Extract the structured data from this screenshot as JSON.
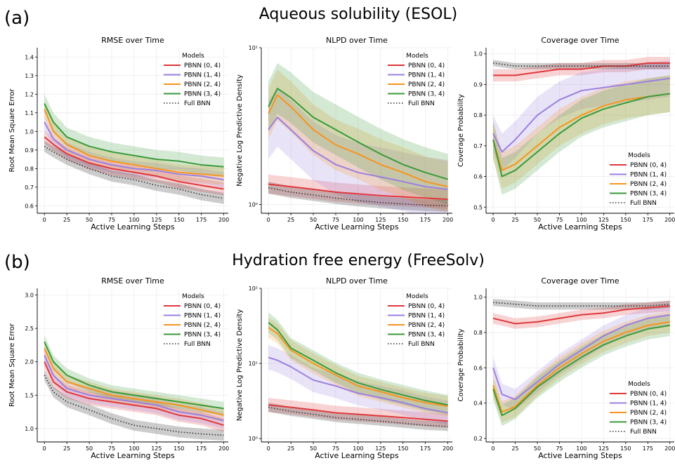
{
  "sections": [
    {
      "label": "(a)",
      "title": "Aqueous solubility (ESOL)"
    },
    {
      "label": "(b)",
      "title": "Hydration free energy (FreeSolv)"
    }
  ],
  "legend_title": "Models",
  "legend_entries": [
    "PBNN (0, 4)",
    "PBNN (1, 4)",
    "PBNN (2, 4)",
    "PBNN (3, 4)",
    "Full BNN"
  ],
  "colors": {
    "PBNN (0, 4)": "#e0383b",
    "PBNN (1, 4)": "#9b7fe0",
    "PBNN (2, 4)": "#f7941d",
    "PBNN (3, 4)": "#3a9a3a",
    "Full BNN": "#333333"
  },
  "chart_data": [
    {
      "type": "line",
      "section": "(a)",
      "title": "RMSE over Time",
      "xlabel": "Active Learning Steps",
      "ylabel": "Root Mean Square Error",
      "xlim": [
        -8,
        205
      ],
      "ylim": [
        0.56,
        1.45
      ],
      "yscale": "linear",
      "xticks": [
        0,
        25,
        50,
        75,
        100,
        125,
        150,
        175,
        200
      ],
      "yticks": [
        0.6,
        0.7,
        0.8,
        0.9,
        1.0,
        1.1,
        1.2,
        1.3,
        1.4
      ],
      "ytick_labels": [
        "0.6",
        "0.7",
        "0.8",
        "0.9",
        "1.0",
        "1.1",
        "1.2",
        "1.3",
        "1.4"
      ],
      "legend": "top-right",
      "grid": true,
      "series": [
        {
          "name": "PBNN (0, 4)",
          "style": "solid",
          "x": [
            0,
            10,
            25,
            50,
            75,
            100,
            125,
            150,
            175,
            200
          ],
          "y": [
            0.97,
            0.93,
            0.88,
            0.83,
            0.8,
            0.78,
            0.76,
            0.73,
            0.71,
            0.69
          ],
          "spread": 0.035
        },
        {
          "name": "PBNN (1, 4)",
          "style": "solid",
          "x": [
            0,
            10,
            25,
            50,
            75,
            100,
            125,
            150,
            175,
            200
          ],
          "y": [
            1.05,
            0.96,
            0.9,
            0.85,
            0.82,
            0.8,
            0.79,
            0.77,
            0.76,
            0.74
          ],
          "spread": 0.04
        },
        {
          "name": "PBNN (2, 4)",
          "style": "solid",
          "x": [
            0,
            10,
            25,
            50,
            75,
            100,
            125,
            150,
            175,
            200
          ],
          "y": [
            1.12,
            1.0,
            0.93,
            0.87,
            0.84,
            0.82,
            0.8,
            0.78,
            0.77,
            0.76
          ],
          "spread": 0.045
        },
        {
          "name": "PBNN (3, 4)",
          "style": "solid",
          "x": [
            0,
            10,
            25,
            50,
            75,
            100,
            125,
            150,
            175,
            200
          ],
          "y": [
            1.15,
            1.05,
            0.97,
            0.92,
            0.89,
            0.87,
            0.85,
            0.84,
            0.82,
            0.81
          ],
          "spread": 0.05
        },
        {
          "name": "Full BNN",
          "style": "dotted",
          "x": [
            0,
            10,
            25,
            50,
            75,
            100,
            125,
            150,
            175,
            200
          ],
          "y": [
            0.92,
            0.89,
            0.85,
            0.8,
            0.76,
            0.74,
            0.71,
            0.69,
            0.66,
            0.64
          ],
          "spread": 0.03
        }
      ]
    },
    {
      "type": "line",
      "section": "(a)",
      "title": "NLPD over Time",
      "xlabel": "Active Learning Steps",
      "ylabel": "Negative Log Predictive Density",
      "xlim": [
        -8,
        205
      ],
      "ylim": [
        0.88,
        10
      ],
      "yscale": "log",
      "xticks": [
        0,
        25,
        50,
        75,
        100,
        125,
        150,
        175,
        200
      ],
      "yticks": [
        1,
        10
      ],
      "ytick_labels": [
        "10⁰",
        "10¹"
      ],
      "legend": "top-right",
      "grid": true,
      "series": [
        {
          "name": "PBNN (0, 4)",
          "style": "solid",
          "x": [
            0,
            25,
            50,
            75,
            100,
            125,
            150,
            175,
            200
          ],
          "y": [
            1.35,
            1.3,
            1.25,
            1.2,
            1.17,
            1.14,
            1.12,
            1.1,
            1.08
          ],
          "spread": 0.05
        },
        {
          "name": "PBNN (1, 4)",
          "style": "solid",
          "x": [
            0,
            10,
            25,
            50,
            75,
            100,
            125,
            150,
            175,
            200
          ],
          "y": [
            3.0,
            3.6,
            3.0,
            2.2,
            1.8,
            1.6,
            1.5,
            1.4,
            1.3,
            1.25
          ],
          "spread": 0.18
        },
        {
          "name": "PBNN (2, 4)",
          "style": "solid",
          "x": [
            0,
            10,
            25,
            50,
            75,
            100,
            125,
            150,
            175,
            200
          ],
          "y": [
            3.8,
            5.0,
            4.2,
            3.0,
            2.4,
            2.1,
            1.8,
            1.6,
            1.4,
            1.3
          ],
          "spread": 0.15
        },
        {
          "name": "PBNN (3, 4)",
          "style": "solid",
          "x": [
            0,
            10,
            25,
            50,
            75,
            100,
            125,
            150,
            175,
            200
          ],
          "y": [
            4.2,
            5.5,
            4.8,
            3.6,
            3.0,
            2.5,
            2.1,
            1.8,
            1.6,
            1.45
          ],
          "spread": 0.15
        },
        {
          "name": "Full BNN",
          "style": "dotted",
          "x": [
            0,
            25,
            50,
            75,
            100,
            125,
            150,
            175,
            200
          ],
          "y": [
            1.28,
            1.2,
            1.15,
            1.1,
            1.06,
            1.03,
            1.01,
            0.99,
            0.98
          ],
          "spread": 0.03
        }
      ]
    },
    {
      "type": "line",
      "section": "(a)",
      "title": "Coverage over Time",
      "xlabel": "Active Learning Steps",
      "ylabel": "Coverage Probability",
      "xlim": [
        -8,
        205
      ],
      "ylim": [
        0.48,
        1.02
      ],
      "yscale": "linear",
      "xticks": [
        0,
        25,
        50,
        75,
        100,
        125,
        150,
        175,
        200
      ],
      "yticks": [
        0.5,
        0.6,
        0.7,
        0.8,
        0.9,
        1.0
      ],
      "ytick_labels": [
        "0.5",
        "0.6",
        "0.7",
        "0.8",
        "0.9",
        "1.0"
      ],
      "legend": "lower-right",
      "grid": true,
      "series": [
        {
          "name": "PBNN (0, 4)",
          "style": "solid",
          "x": [
            0,
            25,
            50,
            75,
            100,
            125,
            150,
            175,
            200
          ],
          "y": [
            0.93,
            0.93,
            0.94,
            0.95,
            0.95,
            0.96,
            0.96,
            0.97,
            0.97
          ],
          "spread": 0.02
        },
        {
          "name": "PBNN (1, 4)",
          "style": "solid",
          "x": [
            0,
            10,
            25,
            50,
            75,
            100,
            125,
            150,
            175,
            200
          ],
          "y": [
            0.74,
            0.68,
            0.72,
            0.8,
            0.85,
            0.88,
            0.89,
            0.9,
            0.91,
            0.92
          ],
          "spread": 0.06
        },
        {
          "name": "PBNN (2, 4)",
          "style": "solid",
          "x": [
            0,
            10,
            25,
            50,
            75,
            100,
            125,
            150,
            175,
            200
          ],
          "y": [
            0.72,
            0.62,
            0.64,
            0.7,
            0.76,
            0.8,
            0.83,
            0.85,
            0.86,
            0.87
          ],
          "spread": 0.06
        },
        {
          "name": "PBNN (3, 4)",
          "style": "solid",
          "x": [
            0,
            10,
            25,
            50,
            75,
            100,
            125,
            150,
            175,
            200
          ],
          "y": [
            0.72,
            0.6,
            0.62,
            0.68,
            0.74,
            0.79,
            0.82,
            0.84,
            0.86,
            0.87
          ],
          "spread": 0.06
        },
        {
          "name": "Full BNN",
          "style": "dotted",
          "x": [
            0,
            25,
            50,
            75,
            100,
            125,
            150,
            175,
            200
          ],
          "y": [
            0.97,
            0.96,
            0.96,
            0.96,
            0.96,
            0.96,
            0.96,
            0.96,
            0.96
          ],
          "spread": 0.01
        }
      ]
    },
    {
      "type": "line",
      "section": "(b)",
      "title": "RMSE over Time",
      "xlabel": "Active Learning Steps",
      "ylabel": "Root Mean Square Error",
      "xlim": [
        -8,
        205
      ],
      "ylim": [
        0.8,
        3.1
      ],
      "yscale": "linear",
      "xticks": [
        0,
        25,
        50,
        75,
        100,
        125,
        150,
        175,
        200
      ],
      "yticks": [
        1.0,
        1.5,
        2.0,
        2.5,
        3.0
      ],
      "ytick_labels": [
        "1.0",
        "1.5",
        "2.0",
        "2.5",
        "3.0"
      ],
      "legend": "top-right",
      "grid": true,
      "series": [
        {
          "name": "PBNN (0, 4)",
          "style": "solid",
          "x": [
            0,
            10,
            25,
            50,
            75,
            100,
            125,
            150,
            175,
            200
          ],
          "y": [
            2.0,
            1.7,
            1.55,
            1.45,
            1.4,
            1.35,
            1.3,
            1.2,
            1.15,
            1.05
          ],
          "spread": 0.1
        },
        {
          "name": "PBNN (1, 4)",
          "style": "solid",
          "x": [
            0,
            10,
            25,
            50,
            75,
            100,
            125,
            150,
            175,
            200
          ],
          "y": [
            2.1,
            1.8,
            1.6,
            1.5,
            1.45,
            1.4,
            1.35,
            1.25,
            1.2,
            1.12
          ],
          "spread": 0.12
        },
        {
          "name": "PBNN (2, 4)",
          "style": "solid",
          "x": [
            0,
            10,
            25,
            50,
            75,
            100,
            125,
            150,
            175,
            200
          ],
          "y": [
            2.2,
            1.9,
            1.7,
            1.6,
            1.5,
            1.45,
            1.4,
            1.35,
            1.28,
            1.2
          ],
          "spread": 0.1
        },
        {
          "name": "PBNN (3, 4)",
          "style": "solid",
          "x": [
            0,
            10,
            25,
            50,
            75,
            100,
            125,
            150,
            175,
            200
          ],
          "y": [
            2.3,
            2.0,
            1.8,
            1.65,
            1.55,
            1.5,
            1.45,
            1.4,
            1.35,
            1.3
          ],
          "spread": 0.1
        },
        {
          "name": "Full BNN",
          "style": "dotted",
          "x": [
            0,
            10,
            25,
            50,
            75,
            100,
            125,
            150,
            175,
            200
          ],
          "y": [
            1.8,
            1.55,
            1.4,
            1.28,
            1.15,
            1.05,
            1.0,
            0.95,
            0.92,
            0.9
          ],
          "spread": 0.08
        }
      ]
    },
    {
      "type": "line",
      "section": "(b)",
      "title": "NLPD over Time",
      "xlabel": "Active Learning Steps",
      "ylabel": "Negative Log Predictive Density",
      "xlim": [
        -8,
        205
      ],
      "ylim": [
        0.9,
        100
      ],
      "yscale": "log",
      "xticks": [
        0,
        25,
        50,
        75,
        100,
        125,
        150,
        175,
        200
      ],
      "yticks": [
        1,
        10,
        100
      ],
      "ytick_labels": [
        "10⁰",
        "10¹",
        "10²"
      ],
      "legend": "top-right",
      "grid": true,
      "series": [
        {
          "name": "PBNN (0, 4)",
          "style": "solid",
          "x": [
            0,
            25,
            50,
            75,
            100,
            125,
            150,
            175,
            200
          ],
          "y": [
            2.8,
            2.6,
            2.4,
            2.2,
            2.1,
            2.0,
            1.9,
            1.8,
            1.7
          ],
          "spread": 0.08
        },
        {
          "name": "PBNN (1, 4)",
          "style": "solid",
          "x": [
            0,
            10,
            25,
            50,
            75,
            100,
            125,
            150,
            175,
            200
          ],
          "y": [
            12,
            11,
            9,
            6,
            5,
            4,
            3.5,
            3,
            2.5,
            2.2
          ],
          "spread": 0.15
        },
        {
          "name": "PBNN (2, 4)",
          "style": "solid",
          "x": [
            0,
            10,
            25,
            50,
            75,
            100,
            125,
            150,
            175,
            200
          ],
          "y": [
            30,
            25,
            15,
            10,
            7,
            5,
            4.2,
            3.5,
            3,
            2.7
          ],
          "spread": 0.12
        },
        {
          "name": "PBNN (3, 4)",
          "style": "solid",
          "x": [
            0,
            10,
            25,
            50,
            75,
            100,
            125,
            150,
            175,
            200
          ],
          "y": [
            35,
            28,
            16,
            11,
            7.5,
            5.5,
            4.5,
            3.8,
            3.2,
            2.8
          ],
          "spread": 0.12
        },
        {
          "name": "Full BNN",
          "style": "dotted",
          "x": [
            0,
            25,
            50,
            75,
            100,
            125,
            150,
            175,
            200
          ],
          "y": [
            2.6,
            2.3,
            2.1,
            1.9,
            1.8,
            1.7,
            1.6,
            1.5,
            1.45
          ],
          "spread": 0.05
        }
      ]
    },
    {
      "type": "line",
      "section": "(b)",
      "title": "Coverage over Time",
      "xlabel": "Active Learning Steps",
      "ylabel": "Coverage Probability",
      "xlim": [
        -8,
        205
      ],
      "ylim": [
        0.18,
        1.05
      ],
      "yscale": "linear",
      "xticks": [
        0,
        25,
        50,
        75,
        100,
        125,
        150,
        175,
        200
      ],
      "yticks": [
        0.2,
        0.4,
        0.6,
        0.8,
        1.0
      ],
      "ytick_labels": [
        "0.2",
        "0.4",
        "0.6",
        "0.8",
        "1.0"
      ],
      "legend": "lower-right",
      "grid": true,
      "series": [
        {
          "name": "PBNN (0, 4)",
          "style": "solid",
          "x": [
            0,
            25,
            50,
            75,
            100,
            125,
            150,
            175,
            200
          ],
          "y": [
            0.88,
            0.85,
            0.86,
            0.88,
            0.9,
            0.91,
            0.93,
            0.94,
            0.95
          ],
          "spread": 0.03
        },
        {
          "name": "PBNN (1, 4)",
          "style": "solid",
          "x": [
            0,
            10,
            25,
            50,
            75,
            100,
            125,
            150,
            175,
            200
          ],
          "y": [
            0.6,
            0.45,
            0.42,
            0.52,
            0.62,
            0.7,
            0.78,
            0.84,
            0.88,
            0.9
          ],
          "spread": 0.06
        },
        {
          "name": "PBNN (2, 4)",
          "style": "solid",
          "x": [
            0,
            10,
            25,
            50,
            75,
            100,
            125,
            150,
            175,
            200
          ],
          "y": [
            0.5,
            0.35,
            0.38,
            0.5,
            0.6,
            0.68,
            0.75,
            0.8,
            0.84,
            0.86
          ],
          "spread": 0.06
        },
        {
          "name": "PBNN (3, 4)",
          "style": "solid",
          "x": [
            0,
            10,
            25,
            50,
            75,
            100,
            125,
            150,
            175,
            200
          ],
          "y": [
            0.48,
            0.33,
            0.37,
            0.49,
            0.58,
            0.66,
            0.73,
            0.78,
            0.82,
            0.84
          ],
          "spread": 0.06
        },
        {
          "name": "Full BNN",
          "style": "dotted",
          "x": [
            0,
            25,
            50,
            75,
            100,
            125,
            150,
            175,
            200
          ],
          "y": [
            0.97,
            0.96,
            0.95,
            0.95,
            0.95,
            0.95,
            0.95,
            0.95,
            0.96
          ],
          "spread": 0.02
        }
      ]
    }
  ]
}
